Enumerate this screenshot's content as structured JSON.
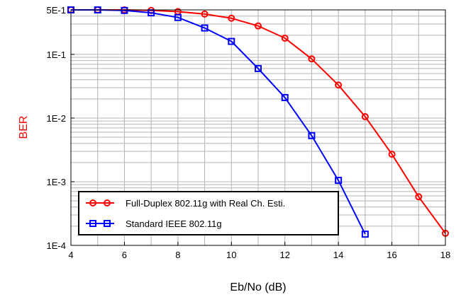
{
  "chart_data": {
    "type": "line",
    "title": "",
    "xlabel": "Eb/No (dB)",
    "ylabel": "BER",
    "xlim": [
      4,
      18
    ],
    "ylim": [
      0.0001,
      0.5
    ],
    "yscale": "log",
    "grid": true,
    "legend_position": "bottom-left",
    "x_ticks": [
      "4",
      "6",
      "8",
      "10",
      "12",
      "14",
      "16",
      "18"
    ],
    "y_ticks": [
      "5E-1",
      "1E-1",
      "1E-2",
      "1E-3",
      "1E-4"
    ],
    "x_tick_values": [
      4,
      6,
      8,
      10,
      12,
      14,
      16,
      18
    ],
    "y_tick_values": [
      0.5,
      0.1,
      0.01,
      0.001,
      0.0001
    ],
    "colors": {
      "axis": "#000000",
      "grid": "#b4b4b4",
      "ylabel": "#ff0000",
      "xlabel": "#000000"
    },
    "series": [
      {
        "name": "Full-Duplex 802.11g with Real Ch. Esti.",
        "color": "#ff0000",
        "marker": "circle",
        "x": [
          4,
          5,
          6,
          7,
          8,
          9,
          10,
          11,
          12,
          13,
          14,
          15,
          16,
          17,
          18
        ],
        "y": [
          0.5,
          0.5,
          0.5,
          0.49,
          0.47,
          0.43,
          0.37,
          0.28,
          0.18,
          0.085,
          0.033,
          0.0105,
          0.0027,
          0.00058,
          0.000155
        ]
      },
      {
        "name": "Standard IEEE 802.11g",
        "color": "#0000ff",
        "marker": "square",
        "x": [
          4,
          5,
          6,
          7,
          8,
          9,
          10,
          11,
          12,
          13,
          14,
          15
        ],
        "y": [
          0.5,
          0.5,
          0.49,
          0.45,
          0.38,
          0.26,
          0.16,
          0.06,
          0.021,
          0.0053,
          0.00105,
          0.00015
        ]
      }
    ]
  }
}
